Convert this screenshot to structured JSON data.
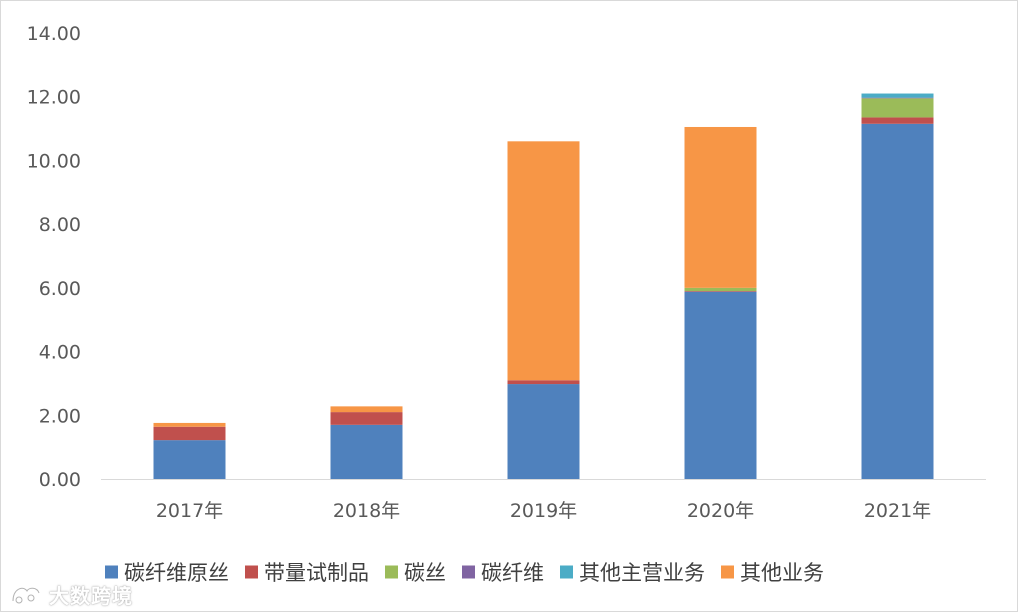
{
  "chart_data": {
    "type": "bar",
    "stacked": true,
    "categories": [
      "2017年",
      "2018年",
      "2019年",
      "2020年",
      "2021年"
    ],
    "ylim": [
      0,
      14
    ],
    "yticks": [
      "0.00",
      "2.00",
      "4.00",
      "6.00",
      "8.00",
      "10.00",
      "12.00",
      "14.00"
    ],
    "grid": false,
    "legend_position": "bottom",
    "series": [
      {
        "name": "碳纤维原丝",
        "color": "#4f81bd",
        "values": [
          1.22,
          1.7,
          2.98,
          5.88,
          11.15
        ]
      },
      {
        "name": "带量试制品",
        "color": "#c0504d",
        "values": [
          0.42,
          0.4,
          0.12,
          0.02,
          0.2
        ]
      },
      {
        "name": "碳丝",
        "color": "#9bbb59",
        "values": [
          0.0,
          0.0,
          0.0,
          0.1,
          0.6
        ]
      },
      {
        "name": "碳纤维",
        "color": "#8064a2",
        "values": [
          0.0,
          0.0,
          0.0,
          0.0,
          0.02
        ]
      },
      {
        "name": "其他主营业务",
        "color": "#4bacc6",
        "values": [
          0.0,
          0.0,
          0.0,
          0.0,
          0.13
        ]
      },
      {
        "name": "其他业务",
        "color": "#f79646",
        "values": [
          0.12,
          0.18,
          7.5,
          5.05,
          0.0
        ]
      }
    ]
  },
  "watermark": {
    "text": "大数跨境",
    "icon": "brand-logo-icon"
  }
}
